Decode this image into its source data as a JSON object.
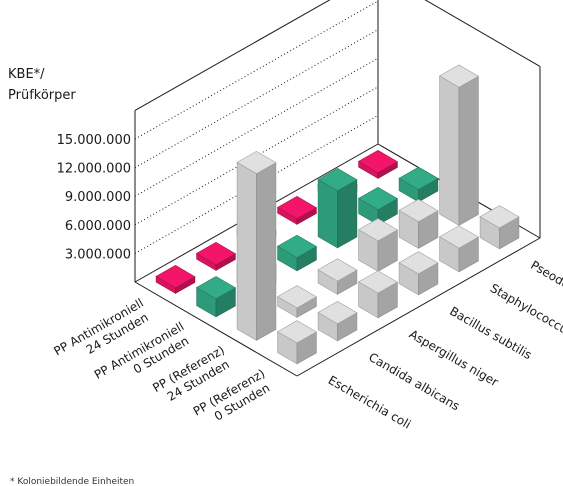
{
  "chart_data": {
    "type": "bar3d",
    "ylabel_line1": "KBE*/",
    "ylabel_line2": "Prüfkörper",
    "yticks": [
      "3.000.000",
      "6.000.000",
      "9.000.000",
      "12.000.000",
      "15.000.000"
    ],
    "ytick_values": [
      3000000,
      6000000,
      9000000,
      12000000,
      15000000
    ],
    "ylim": [
      0,
      18000000
    ],
    "materials": [
      [
        "PP (Referenz)",
        "0 Stunden"
      ],
      [
        "PP (Referenz)",
        "24 Stunden"
      ],
      [
        "PP Antimikroniell",
        "0 Stunden"
      ],
      [
        "PP Antimikroniell",
        "24 Stunden"
      ]
    ],
    "organisms": [
      "Escherichia coli",
      "Candida albicans",
      "Aspergillus niger",
      "Bacillus subtilis",
      "Staphylococcus aureus",
      "Pseodomonas aeruginosa"
    ],
    "values": [
      [
        2200000,
        1800000,
        2600000,
        2200000,
        2500000,
        2200000
      ],
      [
        17500000,
        1000000,
        1400000,
        3200000,
        2800000,
        14500000
      ],
      [
        1900000,
        1900000,
        1400000,
        6000000,
        1600000,
        1300000
      ],
      [
        600000,
        600000,
        600000,
        600000,
        600000,
        600000
      ]
    ],
    "colors": {
      "reference": "#c8c8c8",
      "antimicrobial_0h": "#2d9a78",
      "antimicrobial_24h": "#d8135e",
      "frame": "#1a1a1a"
    },
    "footnote": "* Koloniebildende Einheiten"
  }
}
